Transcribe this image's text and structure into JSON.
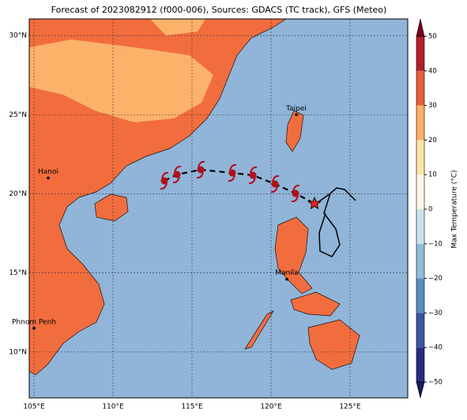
{
  "title": "Forecast of 2023082912 (f000-006), Sources: GDACS (TC track), GFS (Meteo)",
  "map": {
    "lonlim": [
      104.7,
      128.65
    ],
    "latlim": [
      7.1,
      31.05
    ],
    "lon_ticks": [
      {
        "value": 105,
        "label": "105°E"
      },
      {
        "value": 110,
        "label": "110°E"
      },
      {
        "value": 115,
        "label": "115°E"
      },
      {
        "value": 120,
        "label": "120°E"
      },
      {
        "value": 125,
        "label": "125°E"
      }
    ],
    "lat_ticks": [
      {
        "value": 10,
        "label": "10°N"
      },
      {
        "value": 15,
        "label": "15°N"
      },
      {
        "value": 20,
        "label": "20°N"
      },
      {
        "value": 25,
        "label": "25°N"
      },
      {
        "value": 30,
        "label": "30°N"
      }
    ],
    "cities": [
      {
        "name": "Taipei",
        "lon": 121.6,
        "lat": 25.0
      },
      {
        "name": "Hanoi",
        "lon": 105.9,
        "lat": 21.0
      },
      {
        "name": "Manila",
        "lon": 121.0,
        "lat": 14.6
      },
      {
        "name": "Phnom Penh",
        "lon": 105.0,
        "lat": 11.5
      }
    ],
    "track": {
      "lon": [
        113.25,
        114.05,
        115.55,
        117.55,
        118.85,
        120.25,
        121.55
      ],
      "lat": [
        20.82,
        21.22,
        21.52,
        21.32,
        21.17,
        20.62,
        20.02
      ],
      "color": "#b0101a"
    },
    "current": {
      "lon": 122.75,
      "lat": 19.38
    }
  },
  "colorbar": {
    "label": "Max Temperature (°C)",
    "lim": [
      -50,
      50
    ],
    "ticks": [
      {
        "value": -50,
        "label": "−50"
      },
      {
        "value": -40,
        "label": "−40"
      },
      {
        "value": -30,
        "label": "−30"
      },
      {
        "value": -20,
        "label": "−20"
      },
      {
        "value": -10,
        "label": "−10"
      },
      0,
      10,
      20,
      30,
      40,
      50
    ],
    "colors": [
      "#262a85",
      "#3a56a3",
      "#5a8cc0",
      "#90bcd9",
      "#c9e3ef",
      "#fdf6e6",
      "#fde4a6",
      "#fbb064",
      "#ea5f3a",
      "#b41e2b"
    ]
  }
}
